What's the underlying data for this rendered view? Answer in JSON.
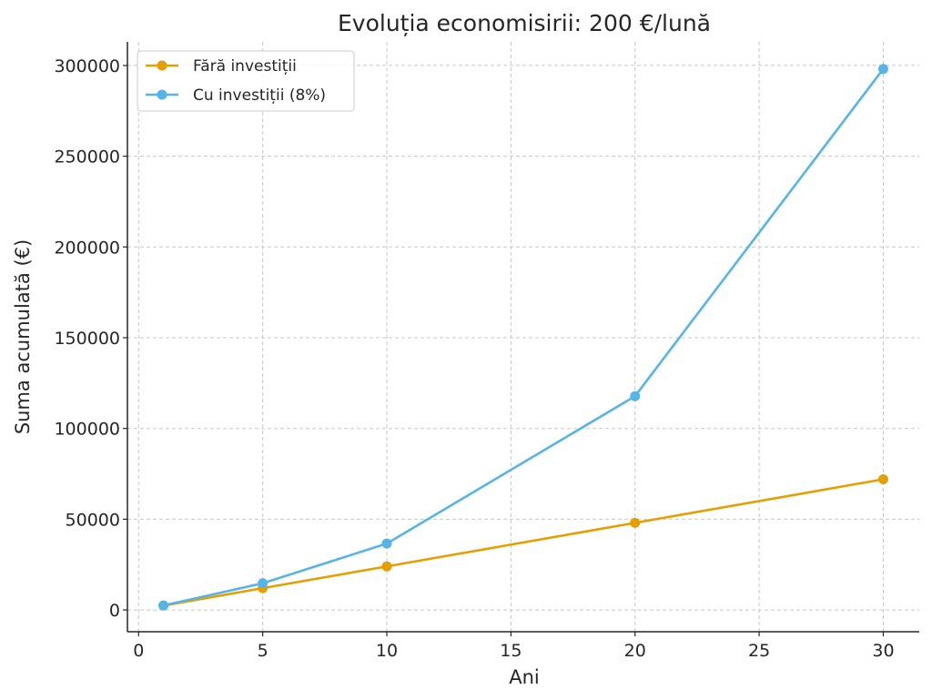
{
  "chart_data": {
    "type": "line",
    "title": "Evoluția economisirii: 200 €/lună",
    "xlabel": "Ani",
    "ylabel": "Suma acumulată (€)",
    "x": [
      1,
      5,
      10,
      20,
      30
    ],
    "xlim": [
      -0.45,
      31.45
    ],
    "ylim": [
      -12000,
      313000
    ],
    "xticks": [
      0,
      5,
      10,
      15,
      20,
      25,
      30
    ],
    "yticks": [
      0,
      50000,
      100000,
      150000,
      200000,
      250000,
      300000
    ],
    "grid": true,
    "legend_position": "top-left",
    "series": [
      {
        "name": "Fără investiții",
        "color": "#E69F00",
        "marker": "circle",
        "values": [
          2400,
          12000,
          24000,
          48000,
          72000
        ]
      },
      {
        "name": "Cu investiții (8%)",
        "color": "#56B4E9",
        "marker": "circle",
        "values": [
          2490,
          14700,
          36600,
          117800,
          298100
        ]
      }
    ]
  }
}
